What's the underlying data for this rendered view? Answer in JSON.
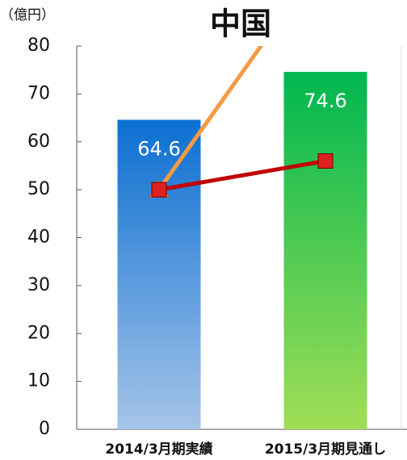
{
  "chart_data": {
    "type": "bar",
    "title": "中国",
    "unit_label": "（億円）",
    "categories": [
      "2014/3月期実績",
      "2015/3月期見通し"
    ],
    "series": [
      {
        "type": "bar",
        "values": [
          64.6,
          74.6
        ],
        "value_labels": [
          "64.6",
          "74.6"
        ],
        "colors": [
          [
            "#0b6fd1",
            "#a6c4e9"
          ],
          [
            "#00b750",
            "#a0de56"
          ]
        ]
      },
      {
        "type": "line",
        "values": [
          50,
          99
        ],
        "color": "#f59a45",
        "marker": "triangle"
      },
      {
        "type": "line",
        "values": [
          50,
          56
        ],
        "color": "#c00000",
        "marker": "square"
      }
    ],
    "ylim": [
      0,
      80
    ],
    "yticks": [
      0,
      10,
      20,
      30,
      40,
      50,
      60,
      70,
      80
    ]
  }
}
